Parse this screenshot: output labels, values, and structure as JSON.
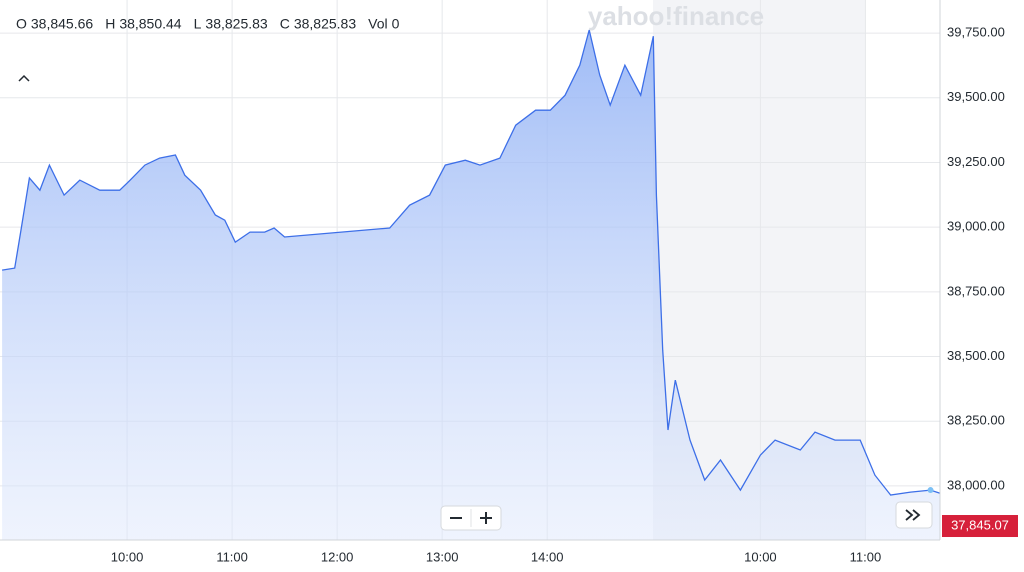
{
  "chart_data": {
    "type": "area",
    "ohlc": [
      {
        "label": "O",
        "value": "38,845.66"
      },
      {
        "label": "H",
        "value": "38,850.44"
      },
      {
        "label": "L",
        "value": "38,825.83"
      },
      {
        "label": "C",
        "value": "38,825.83"
      },
      {
        "label": "Vol",
        "value": "0"
      }
    ],
    "watermark": "yahoo!finance",
    "x": [
      8.81,
      8.93,
      8.99,
      9.07,
      9.17,
      9.26,
      9.4,
      9.55,
      9.74,
      9.93,
      10.03,
      10.17,
      10.31,
      10.46,
      10.55,
      10.7,
      10.84,
      10.93,
      11.03,
      11.17,
      11.31,
      11.4,
      11.5,
      12.5,
      12.69,
      12.88,
      13.03,
      13.22,
      13.36,
      13.55,
      13.7,
      13.89,
      14.03,
      14.17,
      14.31,
      14.4,
      14.5,
      14.6,
      14.74,
      14.89,
      15.01,
      15.04,
      15.1,
      15.15,
      15.22,
      15.36,
      15.5,
      15.65,
      15.84,
      16.03,
      16.17,
      16.41,
      16.55,
      16.74,
      16.98,
      17.12,
      17.27,
      17.46,
      17.65,
      17.74
    ],
    "series": [
      {
        "color": "#3d6fe8",
        "values": [
          38834,
          38842,
          38989,
          39190,
          39143,
          39240,
          39124,
          39182,
          39143,
          39143,
          39182,
          39240,
          39267,
          39279,
          39201,
          39143,
          39047,
          39027,
          38942,
          38981,
          38981,
          38997,
          38962,
          38997,
          39085,
          39124,
          39240,
          39259,
          39240,
          39267,
          39394,
          39452,
          39452,
          39510,
          39626,
          39762,
          39588,
          39472,
          39626,
          39510,
          39738,
          39124,
          38525,
          38216,
          38409,
          38177,
          38023,
          38100,
          37984,
          38119,
          38177,
          38139,
          38208,
          38177,
          38177,
          38042,
          37965,
          37976,
          37984,
          37972
        ]
      }
    ],
    "xlim": [
      8.79,
      17.74
    ],
    "ylim": [
      37791,
      39878
    ],
    "xticks": [
      {
        "value": 10,
        "label": "10:00"
      },
      {
        "value": 11,
        "label": "11:00"
      },
      {
        "value": 12,
        "label": "12:00"
      },
      {
        "value": 13,
        "label": "13:00"
      },
      {
        "value": 14,
        "label": "14:00"
      },
      {
        "value": 16.03,
        "label": "10:00"
      },
      {
        "value": 17.03,
        "label": "11:00"
      }
    ],
    "yticks": [
      {
        "value": 38000,
        "label": "38,000.00"
      },
      {
        "value": 38250,
        "label": "38,250.00"
      },
      {
        "value": 38500,
        "label": "38,500.00"
      },
      {
        "value": 38750,
        "label": "38,750.00"
      },
      {
        "value": 39000,
        "label": "39,000.00"
      },
      {
        "value": 39250,
        "label": "39,250.00"
      },
      {
        "value": 39500,
        "label": "39,500.00"
      },
      {
        "value": 39750,
        "label": "39,750.00"
      }
    ],
    "grid": true,
    "last_price": {
      "value": 37845.07,
      "label": "37,845.07"
    }
  }
}
